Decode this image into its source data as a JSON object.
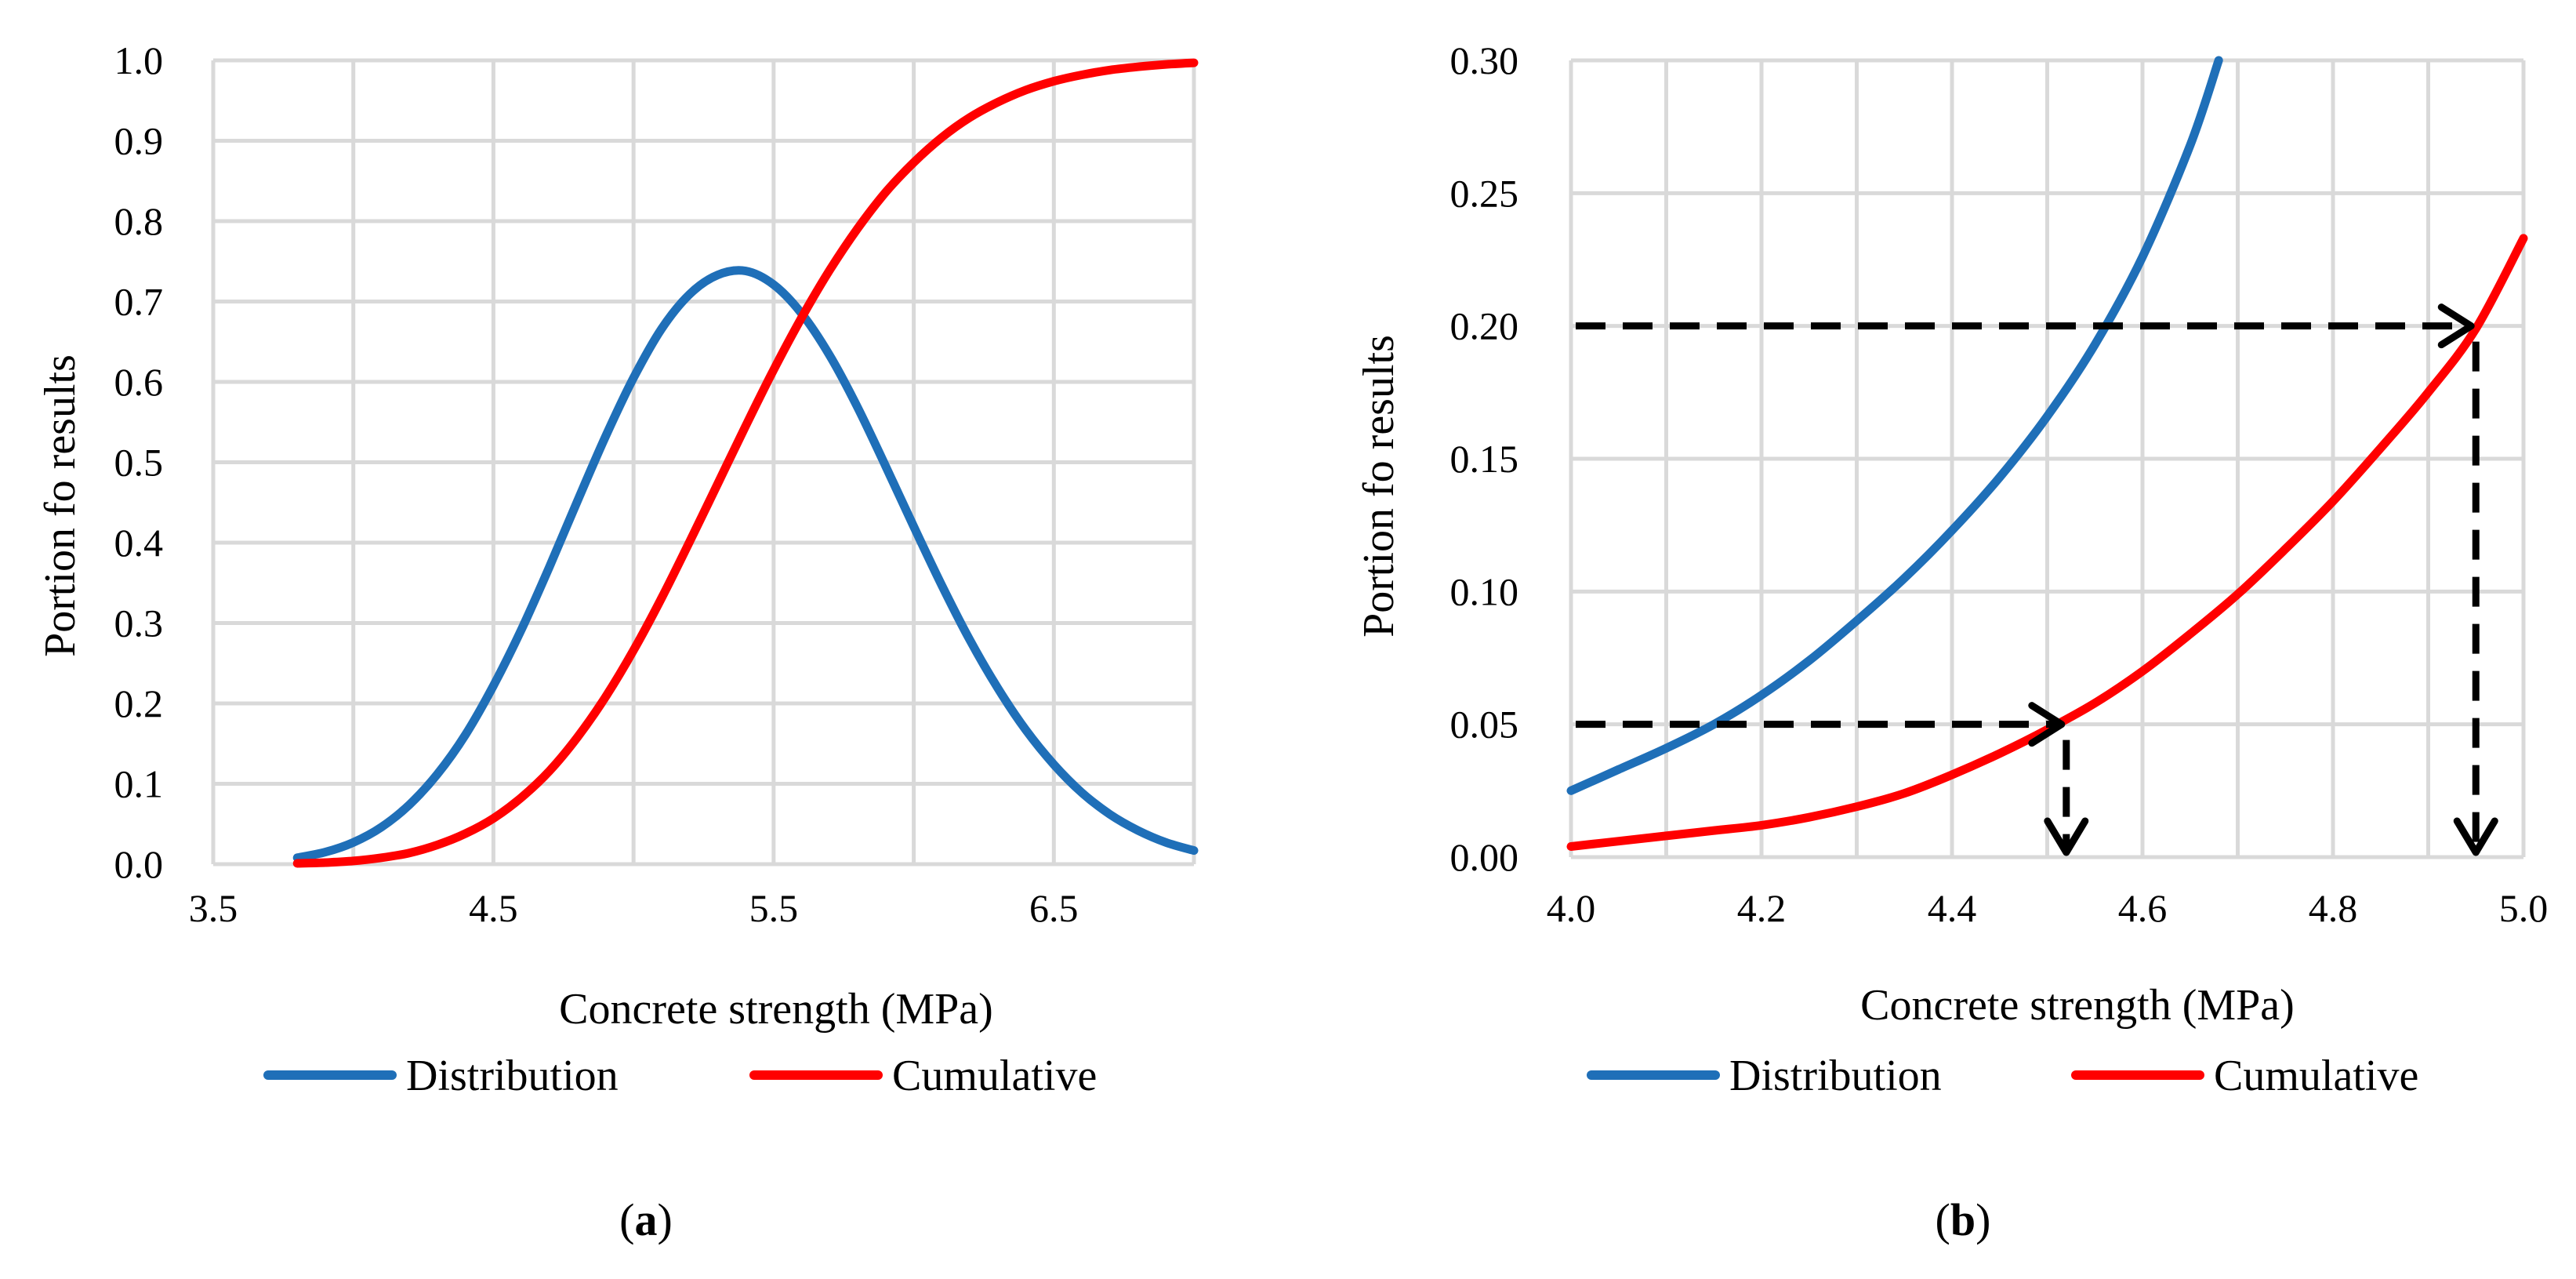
{
  "colors": {
    "distribution": "#1f6fb8",
    "cumulative": "#ff0000",
    "grid": "#d9d9d9",
    "guide": "#000000"
  },
  "chart_data": [
    {
      "id": "a",
      "type": "line",
      "xlabel": "Concrete strength (MPa)",
      "ylabel": "Portion fo results",
      "xlim": [
        3.5,
        7.0
      ],
      "ylim": [
        0.0,
        1.0
      ],
      "xticks": [
        "3.5",
        "4.5",
        "5.5",
        "6.5"
      ],
      "xtick_values": [
        3.5,
        4.5,
        5.5,
        6.5
      ],
      "xgrid_values": [
        3.5,
        4.0,
        4.5,
        5.0,
        5.5,
        6.0,
        6.5,
        7.0
      ],
      "yticks": [
        "0.0",
        "0.1",
        "0.2",
        "0.3",
        "0.4",
        "0.5",
        "0.6",
        "0.7",
        "0.8",
        "0.9",
        "1.0"
      ],
      "ytick_values": [
        0.0,
        0.1,
        0.2,
        0.3,
        0.4,
        0.5,
        0.6,
        0.7,
        0.8,
        0.9,
        1.0
      ],
      "series": [
        {
          "name": "Distribution",
          "color": "#1f6fb8",
          "x": [
            3.8,
            3.9,
            4.0,
            4.1,
            4.2,
            4.3,
            4.4,
            4.5,
            4.6,
            4.7,
            4.8,
            4.9,
            5.0,
            5.1,
            5.2,
            5.3,
            5.4,
            5.5,
            5.6,
            5.7,
            5.8,
            5.9,
            6.0,
            6.1,
            6.2,
            6.3,
            6.4,
            6.5,
            6.6,
            6.7,
            6.8,
            6.9,
            7.0
          ],
          "y": [
            0.008,
            0.015,
            0.027,
            0.046,
            0.074,
            0.112,
            0.161,
            0.222,
            0.292,
            0.37,
            0.452,
            0.532,
            0.605,
            0.666,
            0.709,
            0.733,
            0.738,
            0.721,
            0.685,
            0.633,
            0.568,
            0.495,
            0.42,
            0.347,
            0.279,
            0.219,
            0.167,
            0.124,
            0.089,
            0.062,
            0.042,
            0.027,
            0.017
          ]
        },
        {
          "name": "Cumulative",
          "color": "#ff0000",
          "x": [
            3.8,
            3.9,
            4.0,
            4.1,
            4.2,
            4.3,
            4.4,
            4.5,
            4.6,
            4.7,
            4.8,
            4.9,
            5.0,
            5.1,
            5.2,
            5.3,
            5.4,
            5.5,
            5.6,
            5.7,
            5.8,
            5.9,
            6.0,
            6.1,
            6.2,
            6.3,
            6.4,
            6.5,
            6.6,
            6.7,
            6.8,
            6.9,
            7.0
          ],
          "y": [
            0.001,
            0.002,
            0.004,
            0.008,
            0.014,
            0.024,
            0.038,
            0.057,
            0.083,
            0.116,
            0.158,
            0.208,
            0.266,
            0.331,
            0.401,
            0.473,
            0.545,
            0.615,
            0.68,
            0.739,
            0.791,
            0.836,
            0.873,
            0.904,
            0.929,
            0.948,
            0.963,
            0.974,
            0.982,
            0.988,
            0.992,
            0.995,
            0.997
          ]
        }
      ],
      "legend": [
        "Distribution",
        "Cumulative"
      ],
      "legend_position": "bottom",
      "caption": "a"
    },
    {
      "id": "b",
      "type": "line",
      "xlabel": "Concrete strength (MPa)",
      "ylabel": "Portion fo results",
      "xlim": [
        4.0,
        5.0
      ],
      "ylim": [
        0.0,
        0.3
      ],
      "xticks": [
        "4.0",
        "4.2",
        "4.4",
        "4.6",
        "4.8",
        "5.0"
      ],
      "xtick_values": [
        4.0,
        4.2,
        4.4,
        4.6,
        4.8,
        5.0
      ],
      "xgrid_values": [
        4.0,
        4.1,
        4.2,
        4.3,
        4.4,
        4.5,
        4.6,
        4.7,
        4.8,
        4.9,
        5.0
      ],
      "yticks": [
        "0.00",
        "0.05",
        "0.10",
        "0.15",
        "0.20",
        "0.25",
        "0.30"
      ],
      "ytick_values": [
        0.0,
        0.05,
        0.1,
        0.15,
        0.2,
        0.25,
        0.3
      ],
      "series": [
        {
          "name": "Distribution",
          "color": "#1f6fb8",
          "x": [
            4.0,
            4.05,
            4.1,
            4.15,
            4.2,
            4.25,
            4.3,
            4.35,
            4.4,
            4.45,
            4.5,
            4.55,
            4.6,
            4.65,
            4.68
          ],
          "y": [
            0.025,
            0.033,
            0.041,
            0.05,
            0.061,
            0.074,
            0.089,
            0.105,
            0.123,
            0.143,
            0.166,
            0.193,
            0.226,
            0.268,
            0.3
          ]
        },
        {
          "name": "Cumulative",
          "color": "#ff0000",
          "x": [
            4.0,
            4.05,
            4.1,
            4.15,
            4.2,
            4.25,
            4.3,
            4.35,
            4.4,
            4.45,
            4.5,
            4.55,
            4.6,
            4.65,
            4.7,
            4.75,
            4.8,
            4.85,
            4.9,
            4.95,
            5.0
          ],
          "y": [
            0.004,
            0.006,
            0.008,
            0.01,
            0.012,
            0.015,
            0.019,
            0.024,
            0.031,
            0.039,
            0.048,
            0.058,
            0.07,
            0.084,
            0.099,
            0.116,
            0.134,
            0.154,
            0.175,
            0.199,
            0.233
          ]
        }
      ],
      "guides": [
        {
          "y": 0.2,
          "x": 4.95
        },
        {
          "y": 0.05,
          "x": 4.52
        }
      ],
      "legend": [
        "Distribution",
        "Cumulative"
      ],
      "legend_position": "bottom",
      "caption": "b"
    }
  ]
}
